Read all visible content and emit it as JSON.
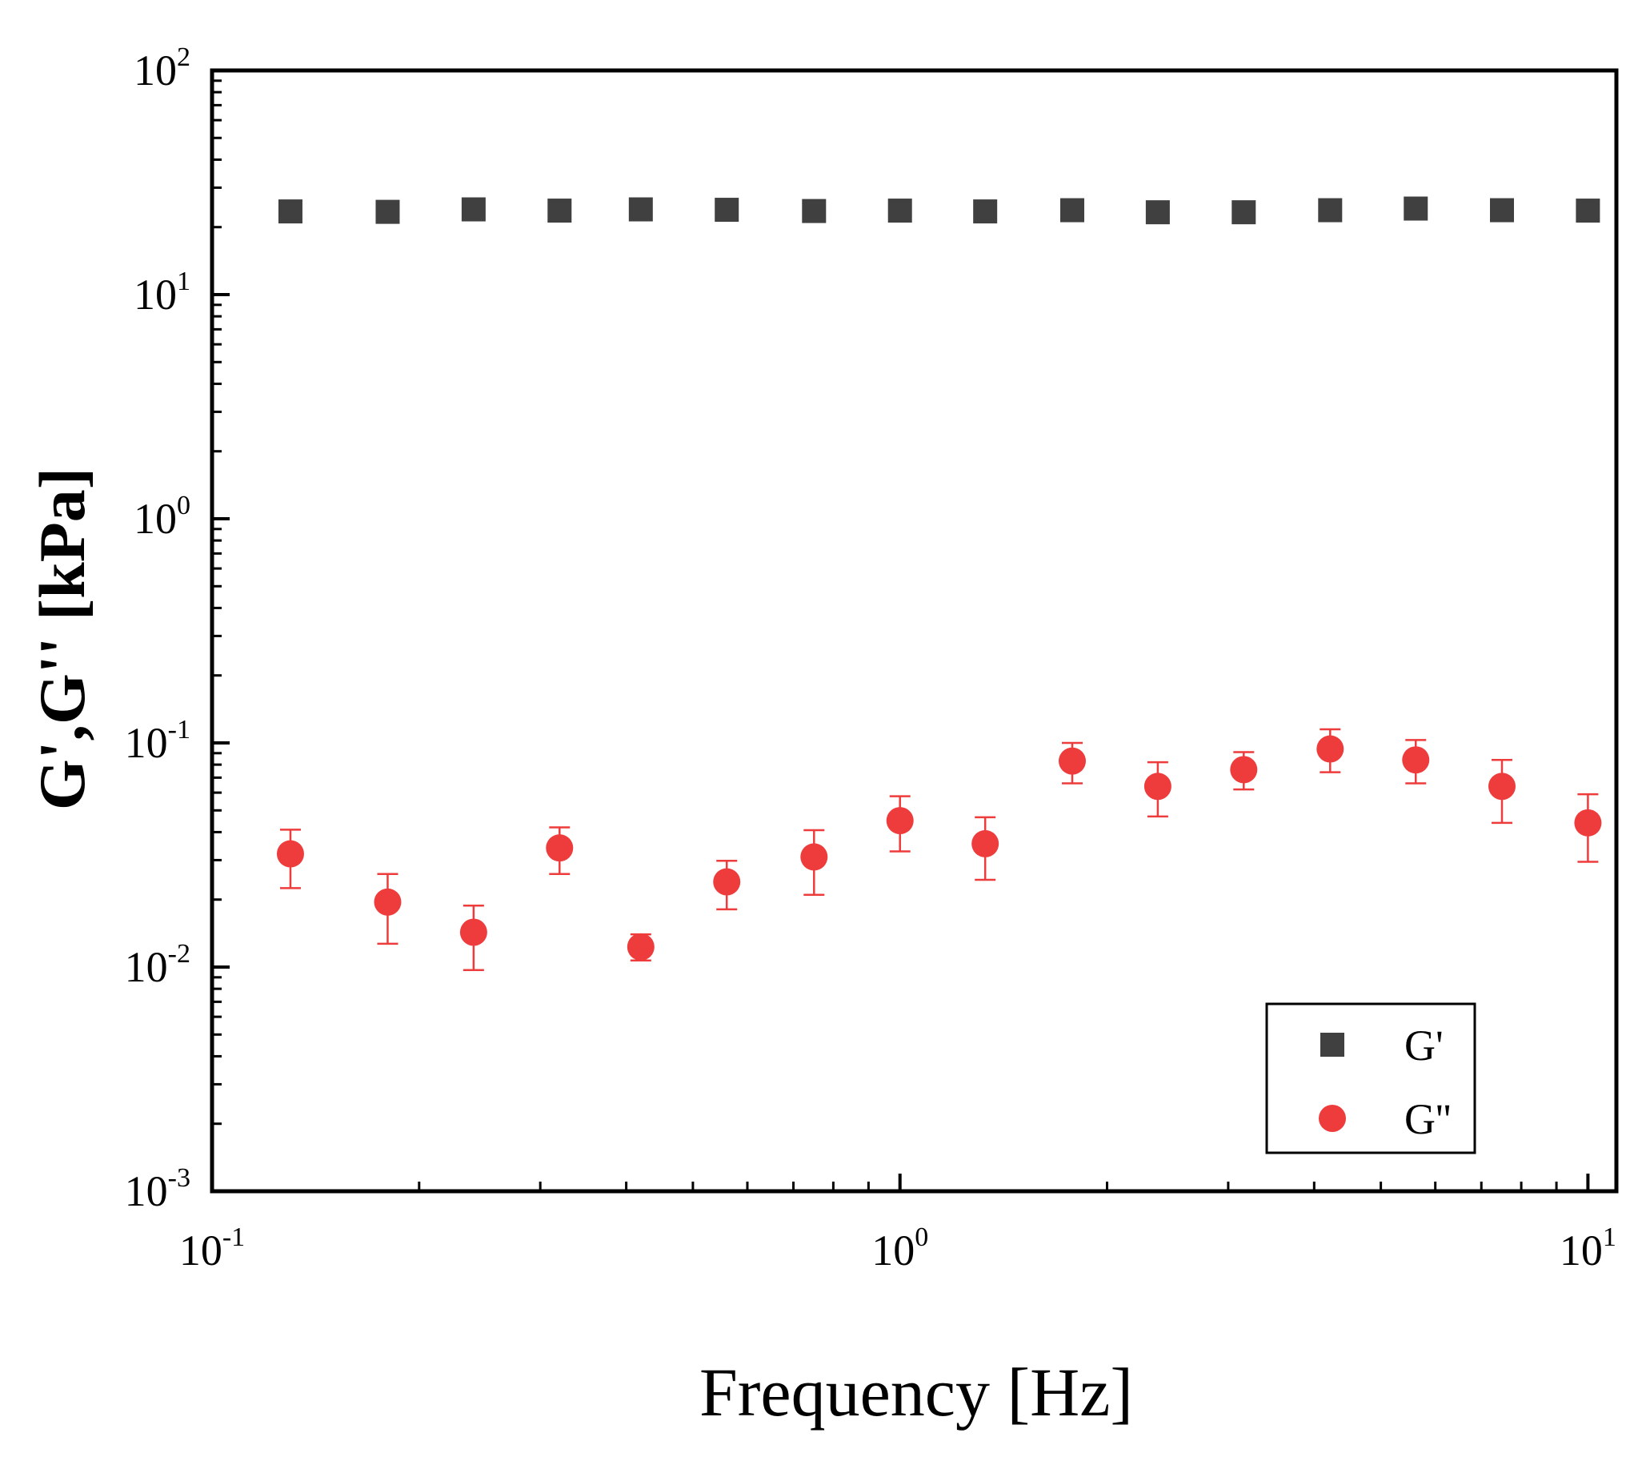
{
  "chart_data": {
    "type": "scatter",
    "title": "",
    "xlabel": "Frequency [Hz]",
    "ylabel": "G',G'' [kPa]",
    "xscale": "log",
    "yscale": "log",
    "xlim": [
      0.1,
      11
    ],
    "ylim": [
      0.001,
      100
    ],
    "x_ticks": [
      {
        "base": "10",
        "exp": "-1"
      },
      {
        "base": "10",
        "exp": "0"
      },
      {
        "base": "10",
        "exp": "1"
      }
    ],
    "y_ticks": [
      {
        "base": "10",
        "exp": "-3"
      },
      {
        "base": "10",
        "exp": "-2"
      },
      {
        "base": "10",
        "exp": "-1"
      },
      {
        "base": "10",
        "exp": "0"
      },
      {
        "base": "10",
        "exp": "1"
      },
      {
        "base": "10",
        "exp": "2"
      }
    ],
    "legend_position": "bottom-right",
    "grid": false,
    "series": [
      {
        "name": "G'",
        "marker": "square",
        "color": "#404040",
        "x": [
          0.13,
          0.18,
          0.24,
          0.32,
          0.42,
          0.56,
          0.75,
          1.0,
          1.33,
          1.78,
          2.37,
          3.16,
          4.22,
          5.62,
          7.5,
          10.0
        ],
        "y": [
          23.5,
          23.4,
          24.0,
          23.7,
          24.0,
          23.9,
          23.6,
          23.7,
          23.5,
          23.8,
          23.3,
          23.3,
          23.8,
          24.2,
          23.8,
          23.7
        ]
      },
      {
        "name": "G''",
        "marker": "circle",
        "color": "#ee3b3b",
        "x": [
          0.13,
          0.18,
          0.24,
          0.32,
          0.42,
          0.56,
          0.75,
          1.0,
          1.33,
          1.78,
          2.37,
          3.16,
          4.22,
          5.62,
          7.5,
          10.0
        ],
        "y": [
          0.032,
          0.0195,
          0.0143,
          0.034,
          0.0123,
          0.024,
          0.031,
          0.045,
          0.0355,
          0.083,
          0.064,
          0.076,
          0.094,
          0.084,
          0.064,
          0.044
        ],
        "err_low": [
          0.0225,
          0.0127,
          0.0097,
          0.026,
          0.0107,
          0.0181,
          0.021,
          0.0328,
          0.0245,
          0.066,
          0.047,
          0.062,
          0.074,
          0.066,
          0.044,
          0.0295
        ],
        "err_high": [
          0.041,
          0.026,
          0.0188,
          0.042,
          0.014,
          0.0298,
          0.0408,
          0.0578,
          0.0466,
          0.1,
          0.082,
          0.091,
          0.115,
          0.103,
          0.084,
          0.059
        ]
      }
    ]
  }
}
